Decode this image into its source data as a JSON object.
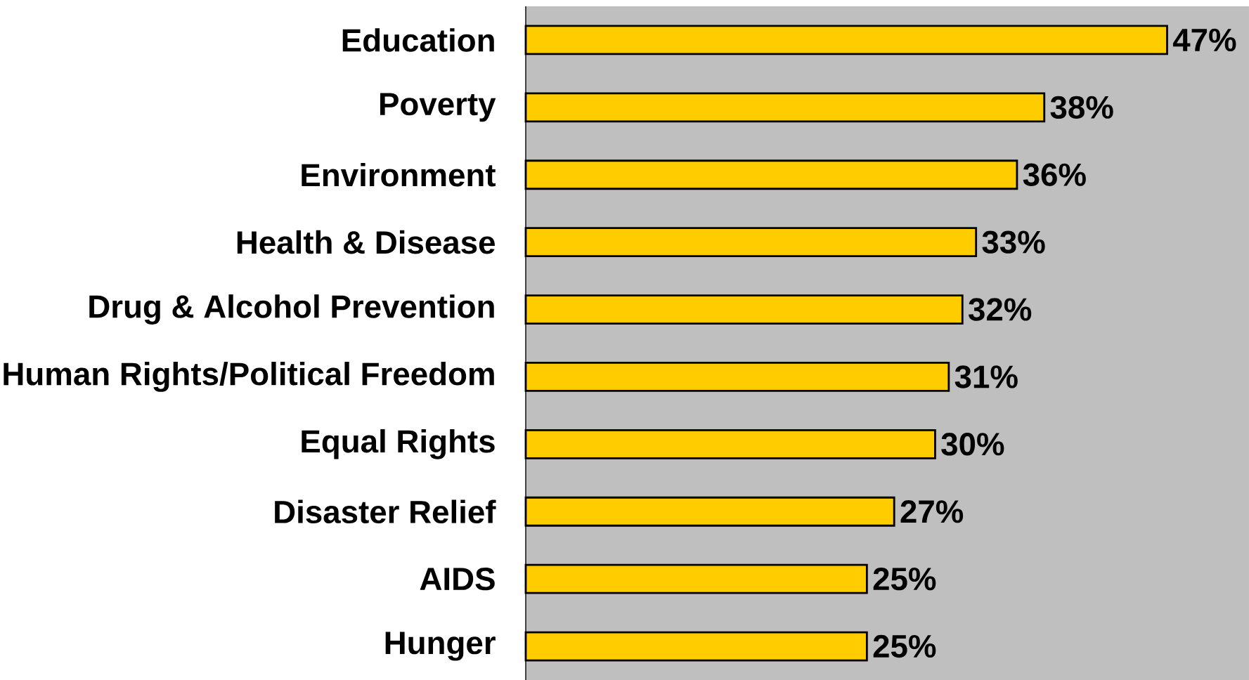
{
  "chart_data": {
    "type": "bar",
    "orientation": "horizontal",
    "categories": [
      "Education",
      "Poverty",
      "Environment",
      "Health & Disease",
      "Drug & Alcohol Prevention",
      "Human Rights/Political Freedom",
      "Equal Rights",
      "Disaster Relief",
      "AIDS",
      "Hunger"
    ],
    "values": [
      47,
      38,
      36,
      33,
      32,
      31,
      30,
      27,
      25,
      25
    ],
    "value_labels": [
      "47%",
      "38%",
      "36%",
      "33%",
      "32%",
      "31%",
      "30%",
      "27%",
      "25%",
      "25%"
    ],
    "color": "#ffcc00",
    "xlim": [
      0,
      53
    ]
  }
}
